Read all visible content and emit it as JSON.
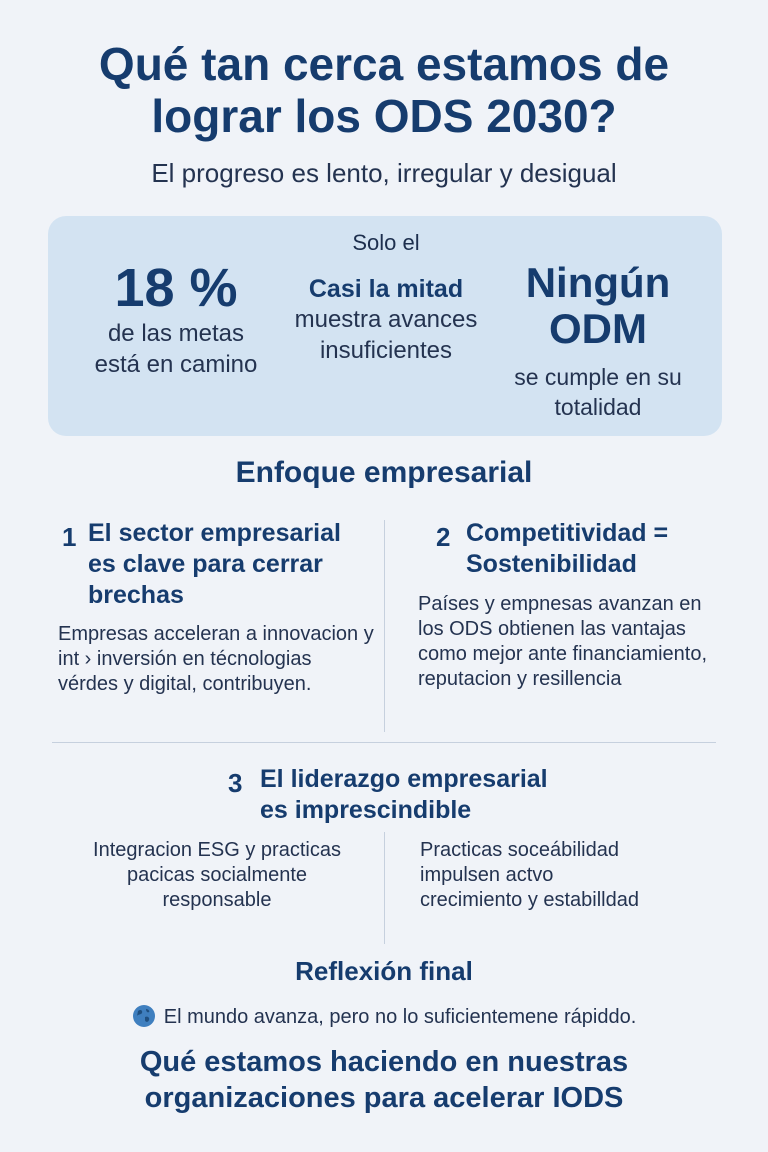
{
  "header": {
    "title": "Qué tan cerca estamos de lograr los ODS 2030?",
    "subtitle": "El progreso es lento, irregular y desigual"
  },
  "stats": [
    {
      "value": "18 %",
      "description": "de las metas está en camino"
    },
    {
      "prefix": "Solo el",
      "value": "Casi la mitad",
      "description": "muestra avances insuficientes"
    },
    {
      "value": "Ningún ODM",
      "description": "se cumple en su totalidad"
    }
  ],
  "section": {
    "title": "Enfoque empresarial",
    "points": [
      {
        "number": "1",
        "heading": "El sector empresarial es clave para cerrar brechas",
        "body": "Empresas acceleran a innovacion y int › inversión en técnologias vérdes y digital, contribuyen."
      },
      {
        "number": "2",
        "heading": "Competitividad = Sostenibilidad",
        "body": "Países y empnesas avanzan en los ODS obtienen las vantajas como mejor ante financiamiento, reputacion y resillencia"
      },
      {
        "number": "3",
        "heading": "El liderazgo empresarial es imprescindible",
        "body_left": "Integracion ESG y practicas pacicas socialmente responsable",
        "body_right": "Practicas soceábilidad impulsen actvo crecimiento y estabilldad"
      }
    ]
  },
  "reflection": {
    "title": "Reflexión final",
    "icon": "globe-icon",
    "text": "El mundo avanza, pero no lo suficientemene rápiddo.",
    "question": "Qué estamos haciendo en nuestras organizaciones para acelerar IODS"
  }
}
